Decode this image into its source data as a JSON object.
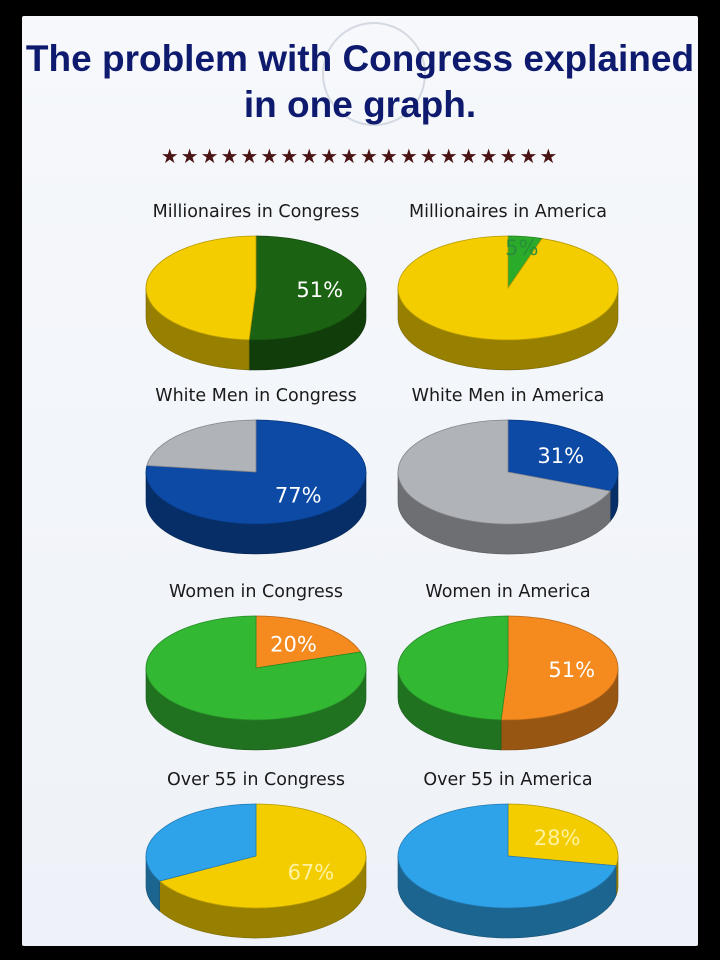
{
  "title": "The problem with Congress explained in one graph.",
  "stars": "★★★★★★★★★★★★★★★★★★★★",
  "chart_data": [
    {
      "type": "pie",
      "title": "Millionaires in Congress",
      "values": [
        51,
        49
      ],
      "label": "51%",
      "colors": [
        "#1b6212",
        "#f3cd00"
      ],
      "text_color": "#ffffff"
    },
    {
      "type": "pie",
      "title": "Millionaires in America",
      "values": [
        5,
        95
      ],
      "label": "5%",
      "colors": [
        "#2aab2a",
        "#f3cd00"
      ],
      "text_color": "#2a8d3a"
    },
    {
      "type": "pie",
      "title": "White Men in Congress",
      "values": [
        77,
        23
      ],
      "label": "77%",
      "colors": [
        "#0c4aa6",
        "#b0b3b8"
      ],
      "text_color": "#ffffff"
    },
    {
      "type": "pie",
      "title": "White Men in America",
      "values": [
        31,
        69
      ],
      "label": "31%",
      "colors": [
        "#0c4aa6",
        "#b0b3b8"
      ],
      "text_color": "#ffffff"
    },
    {
      "type": "pie",
      "title": "Women in Congress",
      "values": [
        20,
        80
      ],
      "label": "20%",
      "colors": [
        "#f58a1f",
        "#33b833"
      ],
      "text_color": "#ffffff"
    },
    {
      "type": "pie",
      "title": "Women in America",
      "values": [
        51,
        49
      ],
      "label": "51%",
      "colors": [
        "#f58a1f",
        "#33b833"
      ],
      "text_color": "#ffffff"
    },
    {
      "type": "pie",
      "title": "Over 55 in Congress",
      "values": [
        67,
        33
      ],
      "label": "67%",
      "colors": [
        "#f3cd00",
        "#2ea3ea"
      ],
      "text_color": "#fff2a0"
    },
    {
      "type": "pie",
      "title": "Over 55 in America",
      "values": [
        28,
        72
      ],
      "label": "28%",
      "colors": [
        "#f3cd00",
        "#2ea3ea"
      ],
      "text_color": "#fff2a0"
    }
  ]
}
